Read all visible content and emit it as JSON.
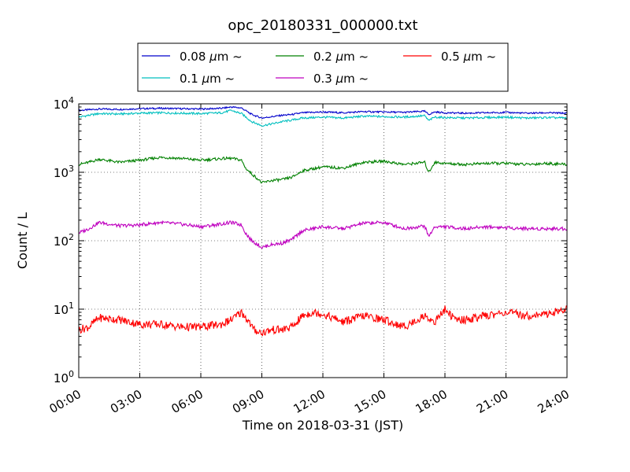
{
  "chart_data": {
    "type": "line",
    "title": "opc_20180331_000000.txt",
    "xlabel": "Time on 2018-03-31 (JST)",
    "ylabel": "Count / L",
    "yscale": "log",
    "xlim": [
      0,
      24
    ],
    "ylim": [
      1,
      10000
    ],
    "grid": true,
    "legend_position": "top-center, outside plot",
    "x_ticks": [
      "00:00",
      "03:00",
      "06:00",
      "09:00",
      "12:00",
      "15:00",
      "18:00",
      "21:00",
      "24:00"
    ],
    "y_ticks": [
      {
        "base": "10",
        "exp": "0"
      },
      {
        "base": "10",
        "exp": "1"
      },
      {
        "base": "10",
        "exp": "2"
      },
      {
        "base": "10",
        "exp": "3"
      },
      {
        "base": "10",
        "exp": "4"
      }
    ],
    "legend_unit": "μm",
    "legend_suffix": "~",
    "series": [
      {
        "name": "0.08",
        "color": "#0000cc",
        "x": [
          0,
          0.5,
          1,
          2,
          3,
          4,
          5,
          6,
          7,
          7.5,
          8,
          8.5,
          9,
          9.5,
          10,
          10.5,
          11,
          12,
          13,
          14,
          15,
          16,
          17,
          17.2,
          17.5,
          18,
          19,
          20,
          21,
          22,
          23,
          24
        ],
        "y": [
          8000,
          8200,
          8400,
          8300,
          8500,
          8600,
          8500,
          8400,
          8600,
          9000,
          8700,
          7000,
          6200,
          6500,
          6800,
          7000,
          7400,
          7600,
          7400,
          7700,
          7600,
          7500,
          7800,
          7000,
          7600,
          7400,
          7300,
          7400,
          7500,
          7300,
          7400,
          7300
        ]
      },
      {
        "name": "0.1",
        "color": "#00bfbf",
        "x": [
          0,
          0.5,
          1,
          2,
          3,
          4,
          5,
          6,
          7,
          7.5,
          8,
          8.5,
          9,
          9.5,
          10,
          10.5,
          11,
          12,
          13,
          14,
          15,
          16,
          17,
          17.2,
          17.5,
          18,
          19,
          20,
          21,
          22,
          23,
          24
        ],
        "y": [
          6400,
          6800,
          7200,
          7100,
          7300,
          7400,
          7300,
          7200,
          7400,
          8000,
          7200,
          5500,
          4800,
          5100,
          5500,
          5800,
          6200,
          6400,
          6200,
          6600,
          6500,
          6400,
          6700,
          5700,
          6400,
          6300,
          6200,
          6300,
          6400,
          6200,
          6300,
          6200
        ]
      },
      {
        "name": "0.2",
        "color": "#008000",
        "x": [
          0,
          0.5,
          1,
          2,
          3,
          4,
          5,
          6,
          7,
          7.5,
          8,
          8.2,
          8.5,
          8.8,
          9,
          9.5,
          10,
          10.5,
          11,
          12,
          13,
          14,
          15,
          16,
          17,
          17.2,
          17.5,
          18,
          19,
          20,
          21,
          22,
          23,
          24
        ],
        "y": [
          1300,
          1400,
          1550,
          1400,
          1500,
          1650,
          1600,
          1500,
          1580,
          1600,
          1500,
          1150,
          950,
          800,
          700,
          760,
          780,
          850,
          1050,
          1200,
          1150,
          1400,
          1450,
          1300,
          1400,
          1000,
          1400,
          1350,
          1300,
          1350,
          1350,
          1300,
          1350,
          1300
        ]
      },
      {
        "name": "0.3",
        "color": "#bf00bf",
        "x": [
          0,
          0.5,
          1,
          2,
          3,
          4,
          5,
          6,
          7,
          7.5,
          8,
          8.2,
          8.5,
          8.8,
          9,
          9.5,
          10,
          10.5,
          11,
          12,
          13,
          14,
          15,
          16,
          17,
          17.2,
          17.5,
          18,
          19,
          20,
          21,
          22,
          23,
          24
        ],
        "y": [
          130,
          150,
          185,
          165,
          170,
          185,
          175,
          160,
          175,
          185,
          170,
          130,
          100,
          88,
          80,
          88,
          92,
          105,
          140,
          160,
          150,
          180,
          185,
          150,
          165,
          115,
          160,
          160,
          150,
          160,
          155,
          150,
          150,
          150
        ]
      },
      {
        "name": "0.5",
        "color": "#ff0000",
        "x": [
          0,
          0.5,
          1,
          2,
          3,
          4,
          5,
          6,
          7,
          7.5,
          8,
          8.3,
          8.6,
          9,
          9.5,
          10,
          10.5,
          11,
          11.5,
          12,
          13,
          14,
          15,
          16,
          17,
          17.5,
          18,
          18.5,
          19,
          20,
          21,
          22,
          23,
          24
        ],
        "y": [
          5,
          5.5,
          7.5,
          7,
          6,
          6,
          5.5,
          5.5,
          6,
          7,
          9,
          7,
          5,
          4.5,
          5,
          5,
          5.5,
          8,
          9,
          8.5,
          6.5,
          8,
          7,
          5.5,
          8,
          6.5,
          10,
          7,
          7,
          8,
          9,
          8,
          8.5,
          10
        ]
      }
    ]
  }
}
